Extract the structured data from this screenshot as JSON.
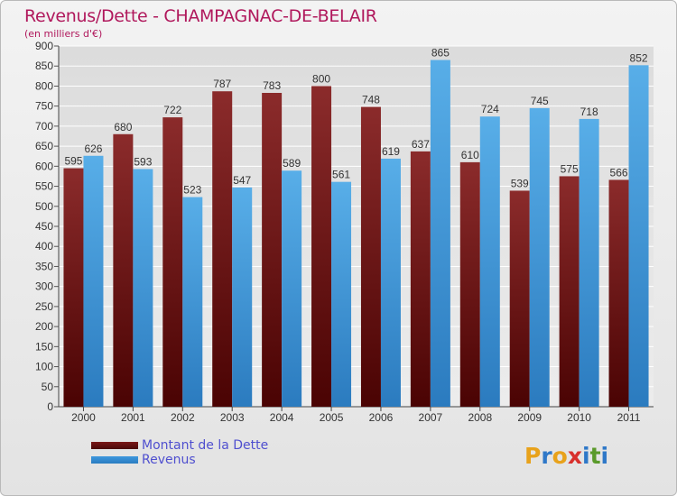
{
  "title": "Revenus/Dette - CHAMPAGNAC-DE-BELAIR",
  "subtitle": "(en milliers d'€)",
  "legend": {
    "debt_label": "Montant de la Dette",
    "revenue_label": "Revenus"
  },
  "logo": {
    "letters": [
      "P",
      "r",
      "o",
      "x",
      "i",
      "t",
      "i"
    ],
    "colors": [
      "#e8a21b",
      "#2f78c8",
      "#e8a21b",
      "#d8302c",
      "#2f78c8",
      "#5a9a2a",
      "#2f78c8"
    ]
  },
  "colors": {
    "debt": "#7a1818",
    "revenue": "#3d97de",
    "title": "#b0185c"
  },
  "chart_data": {
    "type": "bar",
    "categories": [
      "2000",
      "2001",
      "2002",
      "2003",
      "2004",
      "2005",
      "2006",
      "2007",
      "2008",
      "2009",
      "2010",
      "2011"
    ],
    "series": [
      {
        "name": "Montant de la Dette",
        "values": [
          595,
          680,
          722,
          787,
          783,
          800,
          748,
          637,
          610,
          539,
          575,
          566
        ]
      },
      {
        "name": "Revenus",
        "values": [
          626,
          593,
          523,
          547,
          589,
          561,
          619,
          865,
          724,
          745,
          718,
          852
        ]
      }
    ],
    "ylim": [
      0,
      900
    ],
    "yticks": [
      0,
      50,
      100,
      150,
      200,
      250,
      300,
      350,
      400,
      450,
      500,
      550,
      600,
      650,
      700,
      750,
      800,
      850,
      900
    ],
    "grid": true
  }
}
